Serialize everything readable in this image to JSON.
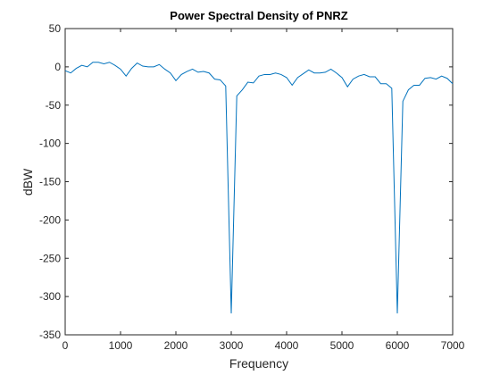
{
  "chart_data": {
    "type": "line",
    "title": "Power Spectral Density of PNRZ",
    "xlabel": "Frequency",
    "ylabel": "dBW",
    "x": [
      0,
      100,
      200,
      300,
      400,
      500,
      600,
      700,
      800,
      900,
      1000,
      1100,
      1200,
      1300,
      1400,
      1500,
      1600,
      1700,
      1800,
      1900,
      2000,
      2100,
      2200,
      2300,
      2400,
      2500,
      2600,
      2700,
      2800,
      2900,
      3000,
      3100,
      3200,
      3300,
      3400,
      3500,
      3600,
      3700,
      3800,
      3900,
      4000,
      4100,
      4200,
      4300,
      4400,
      4500,
      4600,
      4700,
      4800,
      4900,
      5000,
      5100,
      5200,
      5300,
      5400,
      5500,
      5600,
      5700,
      5800,
      5900,
      6000,
      6100,
      6200,
      6300,
      6400,
      6500,
      6600,
      6700,
      6800,
      6900,
      7000
    ],
    "series": [
      {
        "name": "PNRZ",
        "color": "#0072bd",
        "values": [
          -5,
          -8,
          -2,
          2,
          0,
          6,
          6,
          4,
          6,
          2,
          -3,
          -12,
          -2,
          5,
          1,
          0,
          0,
          3,
          -3,
          -8,
          -18,
          -10,
          -6,
          -3,
          -7,
          -6,
          -8,
          -16,
          -17,
          -25,
          -322,
          -38,
          -30,
          -20,
          -21,
          -12,
          -10,
          -10,
          -8,
          -10,
          -14,
          -24,
          -14,
          -9,
          -4,
          -8,
          -8,
          -7,
          -3,
          -8,
          -14,
          -26,
          -16,
          -12,
          -10,
          -13,
          -13,
          -22,
          -22,
          -28,
          -322,
          -45,
          -30,
          -24,
          -24,
          -15,
          -14,
          -16,
          -12,
          -15,
          -22
        ]
      }
    ],
    "xlim": [
      0,
      7000
    ],
    "xticks": [
      0,
      1000,
      2000,
      3000,
      4000,
      5000,
      6000,
      7000
    ],
    "ylim": [
      -350,
      50
    ],
    "yticks": [
      -350,
      -300,
      -250,
      -200,
      -150,
      -100,
      -50,
      0,
      50
    ]
  }
}
